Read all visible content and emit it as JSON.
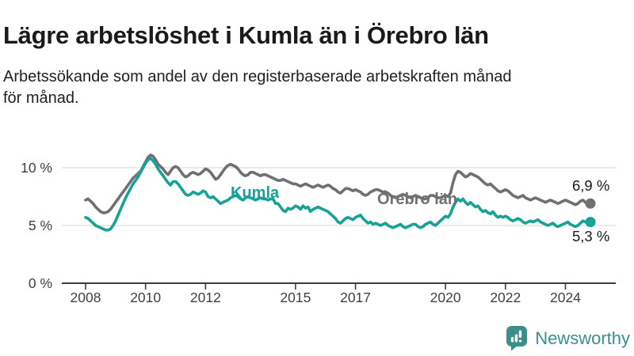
{
  "header": {
    "title": "Lägre arbetslöshet i Kumla än i Örebro län",
    "subtitle_line1": "Arbetssökande som andel av den registerbaserade arbetskraften månad",
    "subtitle_line2": "för månad."
  },
  "branding": {
    "name": "Newsworthy",
    "color": "#3d8e8a",
    "icon": "bar-chart-speech-bubble"
  },
  "chart_data": {
    "type": "line",
    "title": "Lägre arbetslöshet i Kumla än i Örebro län",
    "unit": "%",
    "x_start": "2008-01",
    "x_end": "2024-11",
    "grid": "horizontal",
    "legend_position": "inline-labels",
    "colors": {
      "grid": "#e3e3e3",
      "axis": "#3d3d3d",
      "tick_text": "#404040",
      "end_label_text": "#1a1a1a"
    },
    "y_ticks": [
      {
        "label": "0 %",
        "value": 0
      },
      {
        "label": "5 %",
        "value": 5
      },
      {
        "label": "10 %",
        "value": 10
      }
    ],
    "x_ticks": [
      {
        "label": "2008",
        "year": 2008
      },
      {
        "label": "2010",
        "year": 2010
      },
      {
        "label": "2012",
        "year": 2012
      },
      {
        "label": "2015",
        "year": 2015
      },
      {
        "label": "2017",
        "year": 2017
      },
      {
        "label": "2020",
        "year": 2020
      },
      {
        "label": "2022",
        "year": 2022
      },
      {
        "label": "2024",
        "year": 2024
      }
    ],
    "series": [
      {
        "name": "Örebro län",
        "color": "#6f6f74",
        "end_label": "6,9 %",
        "values": [
          7.2,
          7.3,
          7.1,
          6.9,
          6.6,
          6.4,
          6.2,
          6.1,
          6.1,
          6.2,
          6.4,
          6.7,
          7.0,
          7.3,
          7.6,
          7.9,
          8.2,
          8.5,
          8.8,
          9.1,
          9.3,
          9.5,
          9.7,
          10.1,
          10.5,
          10.9,
          11.1,
          11.0,
          10.7,
          10.3,
          10.1,
          9.9,
          9.6,
          9.4,
          9.7,
          10.0,
          10.1,
          10.0,
          9.7,
          9.4,
          9.2,
          9.3,
          9.5,
          9.6,
          9.5,
          9.4,
          9.5,
          9.7,
          9.9,
          9.8,
          9.6,
          9.3,
          9.0,
          9.1,
          9.4,
          9.7,
          10.0,
          10.2,
          10.3,
          10.2,
          10.1,
          9.9,
          9.6,
          9.4,
          9.3,
          9.4,
          9.6,
          9.6,
          9.5,
          9.4,
          9.3,
          9.4,
          9.4,
          9.3,
          9.2,
          9.1,
          9.0,
          8.9,
          8.9,
          9.0,
          8.9,
          8.8,
          8.7,
          8.6,
          8.6,
          8.5,
          8.4,
          8.5,
          8.6,
          8.5,
          8.4,
          8.3,
          8.4,
          8.5,
          8.4,
          8.3,
          8.4,
          8.5,
          8.4,
          8.2,
          8.1,
          7.9,
          7.8,
          8.0,
          8.2,
          8.2,
          8.1,
          8.0,
          8.1,
          8.0,
          7.9,
          7.7,
          7.6,
          7.7,
          7.9,
          8.0,
          8.1,
          8.1,
          8.0,
          7.9,
          7.9,
          7.8,
          7.6,
          7.5,
          7.4,
          7.5,
          7.6,
          7.7,
          7.6,
          7.5,
          7.4,
          7.5,
          7.6,
          7.5,
          7.4,
          7.3,
          7.3,
          7.4,
          7.6,
          7.6,
          7.5,
          7.4,
          7.4,
          7.5,
          7.6,
          7.5,
          7.8,
          8.7,
          9.4,
          9.7,
          9.6,
          9.4,
          9.2,
          9.3,
          9.5,
          9.4,
          9.3,
          9.2,
          9.0,
          8.8,
          8.6,
          8.5,
          8.6,
          8.4,
          8.2,
          8.0,
          7.9,
          8.0,
          8.1,
          8.0,
          7.8,
          7.6,
          7.5,
          7.4,
          7.5,
          7.6,
          7.4,
          7.3,
          7.2,
          7.3,
          7.4,
          7.3,
          7.2,
          7.1,
          7.0,
          7.1,
          7.2,
          7.1,
          7.0,
          6.9,
          7.0,
          7.1,
          7.2,
          7.1,
          7.0,
          6.9,
          6.8,
          6.9,
          7.1,
          7.2,
          7.0,
          6.8,
          6.9
        ]
      },
      {
        "name": "Kumla",
        "color": "#16a296",
        "end_label": "5,3 %",
        "values": [
          5.7,
          5.6,
          5.4,
          5.2,
          5.0,
          4.9,
          4.8,
          4.7,
          4.6,
          4.6,
          4.7,
          5.0,
          5.4,
          5.9,
          6.4,
          6.9,
          7.4,
          7.8,
          8.2,
          8.6,
          8.9,
          9.2,
          9.6,
          10.0,
          10.4,
          10.7,
          10.8,
          10.6,
          10.3,
          9.9,
          9.6,
          9.3,
          9.0,
          8.7,
          8.5,
          8.8,
          8.8,
          8.6,
          8.3,
          8.0,
          7.7,
          7.6,
          7.7,
          7.9,
          7.8,
          7.7,
          7.8,
          8.0,
          7.9,
          7.5,
          7.4,
          7.5,
          7.3,
          7.1,
          6.9,
          7.0,
          7.1,
          7.2,
          7.4,
          7.5,
          7.6,
          7.5,
          7.3,
          7.2,
          7.4,
          7.5,
          7.4,
          7.3,
          7.2,
          7.3,
          7.4,
          7.3,
          7.3,
          7.2,
          7.3,
          7.3,
          6.9,
          6.9,
          6.6,
          6.3,
          6.2,
          6.5,
          6.4,
          6.5,
          6.7,
          6.6,
          6.4,
          6.7,
          6.5,
          6.6,
          6.2,
          6.4,
          6.5,
          6.6,
          6.5,
          6.4,
          6.3,
          6.2,
          6.0,
          5.8,
          5.6,
          5.3,
          5.2,
          5.4,
          5.6,
          5.7,
          5.6,
          5.5,
          5.7,
          5.8,
          5.9,
          5.6,
          5.4,
          5.2,
          5.3,
          5.1,
          5.2,
          5.1,
          5.0,
          5.1,
          5.2,
          5.0,
          4.9,
          4.8,
          4.9,
          5.0,
          5.1,
          4.9,
          4.8,
          4.9,
          5.0,
          5.1,
          5.1,
          4.9,
          4.8,
          4.9,
          5.1,
          5.2,
          5.3,
          5.1,
          5.0,
          5.2,
          5.4,
          5.6,
          5.8,
          5.7,
          6.0,
          6.6,
          7.0,
          7.3,
          7.1,
          7.3,
          7.0,
          6.8,
          7.0,
          6.8,
          6.6,
          6.7,
          6.4,
          6.2,
          6.3,
          6.1,
          6.0,
          6.2,
          5.9,
          5.7,
          5.8,
          5.7,
          5.8,
          5.7,
          5.5,
          5.4,
          5.5,
          5.6,
          5.5,
          5.3,
          5.2,
          5.3,
          5.4,
          5.3,
          5.4,
          5.5,
          5.3,
          5.2,
          5.1,
          5.0,
          5.1,
          5.2,
          5.0,
          4.9,
          5.0,
          5.1,
          5.2,
          5.3,
          5.1,
          5.0,
          4.9,
          5.0,
          5.2,
          5.4,
          5.3,
          5.2,
          5.3
        ]
      }
    ]
  }
}
